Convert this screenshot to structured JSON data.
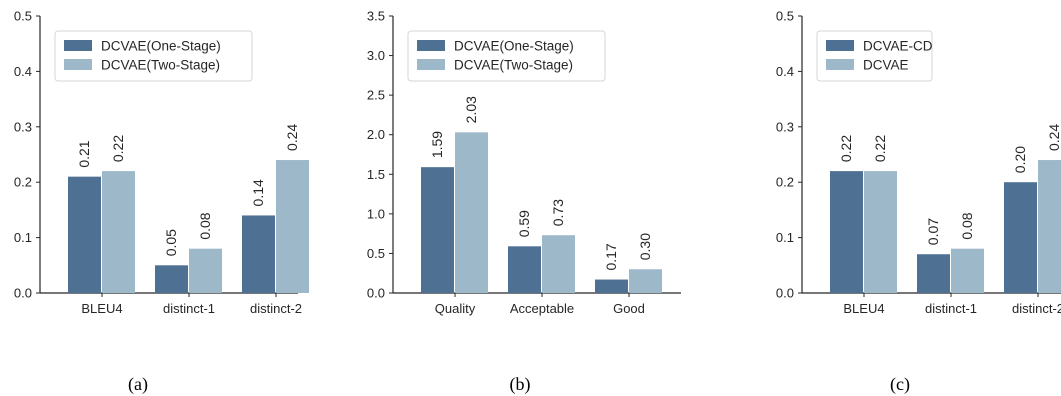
{
  "chart_data": [
    {
      "type": "bar",
      "panel_label": "(a)",
      "categories": [
        "BLEU4",
        "distinct-1",
        "distinct-2"
      ],
      "series": [
        {
          "name": "DCVAE(One-Stage)",
          "values": [
            0.21,
            0.05,
            0.14
          ],
          "labels": [
            "0.21",
            "0.05",
            "0.14"
          ]
        },
        {
          "name": "DCVAE(Two-Stage)",
          "values": [
            0.22,
            0.08,
            0.24
          ],
          "labels": [
            "0.22",
            "0.08",
            "0.24"
          ]
        }
      ],
      "ylim": [
        0,
        0.5
      ],
      "yticks": [
        "0.0",
        "0.1",
        "0.2",
        "0.3",
        "0.4",
        "0.5"
      ],
      "ytick_values": [
        0,
        0.1,
        0.2,
        0.3,
        0.4,
        0.5
      ],
      "legend": "top-left"
    },
    {
      "type": "bar",
      "panel_label": "(b)",
      "categories": [
        "Quality",
        "Acceptable",
        "Good"
      ],
      "series": [
        {
          "name": "DCVAE(One-Stage)",
          "values": [
            1.59,
            0.59,
            0.17
          ],
          "labels": [
            "1.59",
            "0.59",
            "0.17"
          ]
        },
        {
          "name": "DCVAE(Two-Stage)",
          "values": [
            2.03,
            0.73,
            0.3
          ],
          "labels": [
            "2.03",
            "0.73",
            "0.30"
          ]
        }
      ],
      "ylim": [
        0,
        3.5
      ],
      "yticks": [
        "0.0",
        "0.5",
        "1.0",
        "1.5",
        "2.0",
        "2.5",
        "3.0",
        "3.5"
      ],
      "ytick_values": [
        0,
        0.5,
        1.0,
        1.5,
        2.0,
        2.5,
        3.0,
        3.5
      ],
      "legend": "top-left"
    },
    {
      "type": "bar",
      "panel_label": "(c)",
      "categories": [
        "BLEU4",
        "distinct-1",
        "distinct-2"
      ],
      "series": [
        {
          "name": "DCVAE-CD",
          "values": [
            0.22,
            0.07,
            0.2
          ],
          "labels": [
            "0.22",
            "0.07",
            "0.20"
          ]
        },
        {
          "name": "DCVAE",
          "values": [
            0.22,
            0.08,
            0.24
          ],
          "labels": [
            "0.22",
            "0.08",
            "0.24"
          ]
        }
      ],
      "ylim": [
        0,
        0.5
      ],
      "yticks": [
        "0.0",
        "0.1",
        "0.2",
        "0.3",
        "0.4",
        "0.5"
      ],
      "ytick_values": [
        0,
        0.1,
        0.2,
        0.3,
        0.4,
        0.5
      ],
      "legend": "top-left"
    }
  ],
  "colors": {
    "series_dark": "#4e7193",
    "series_light": "#9db9c9",
    "axis": "#262626"
  }
}
